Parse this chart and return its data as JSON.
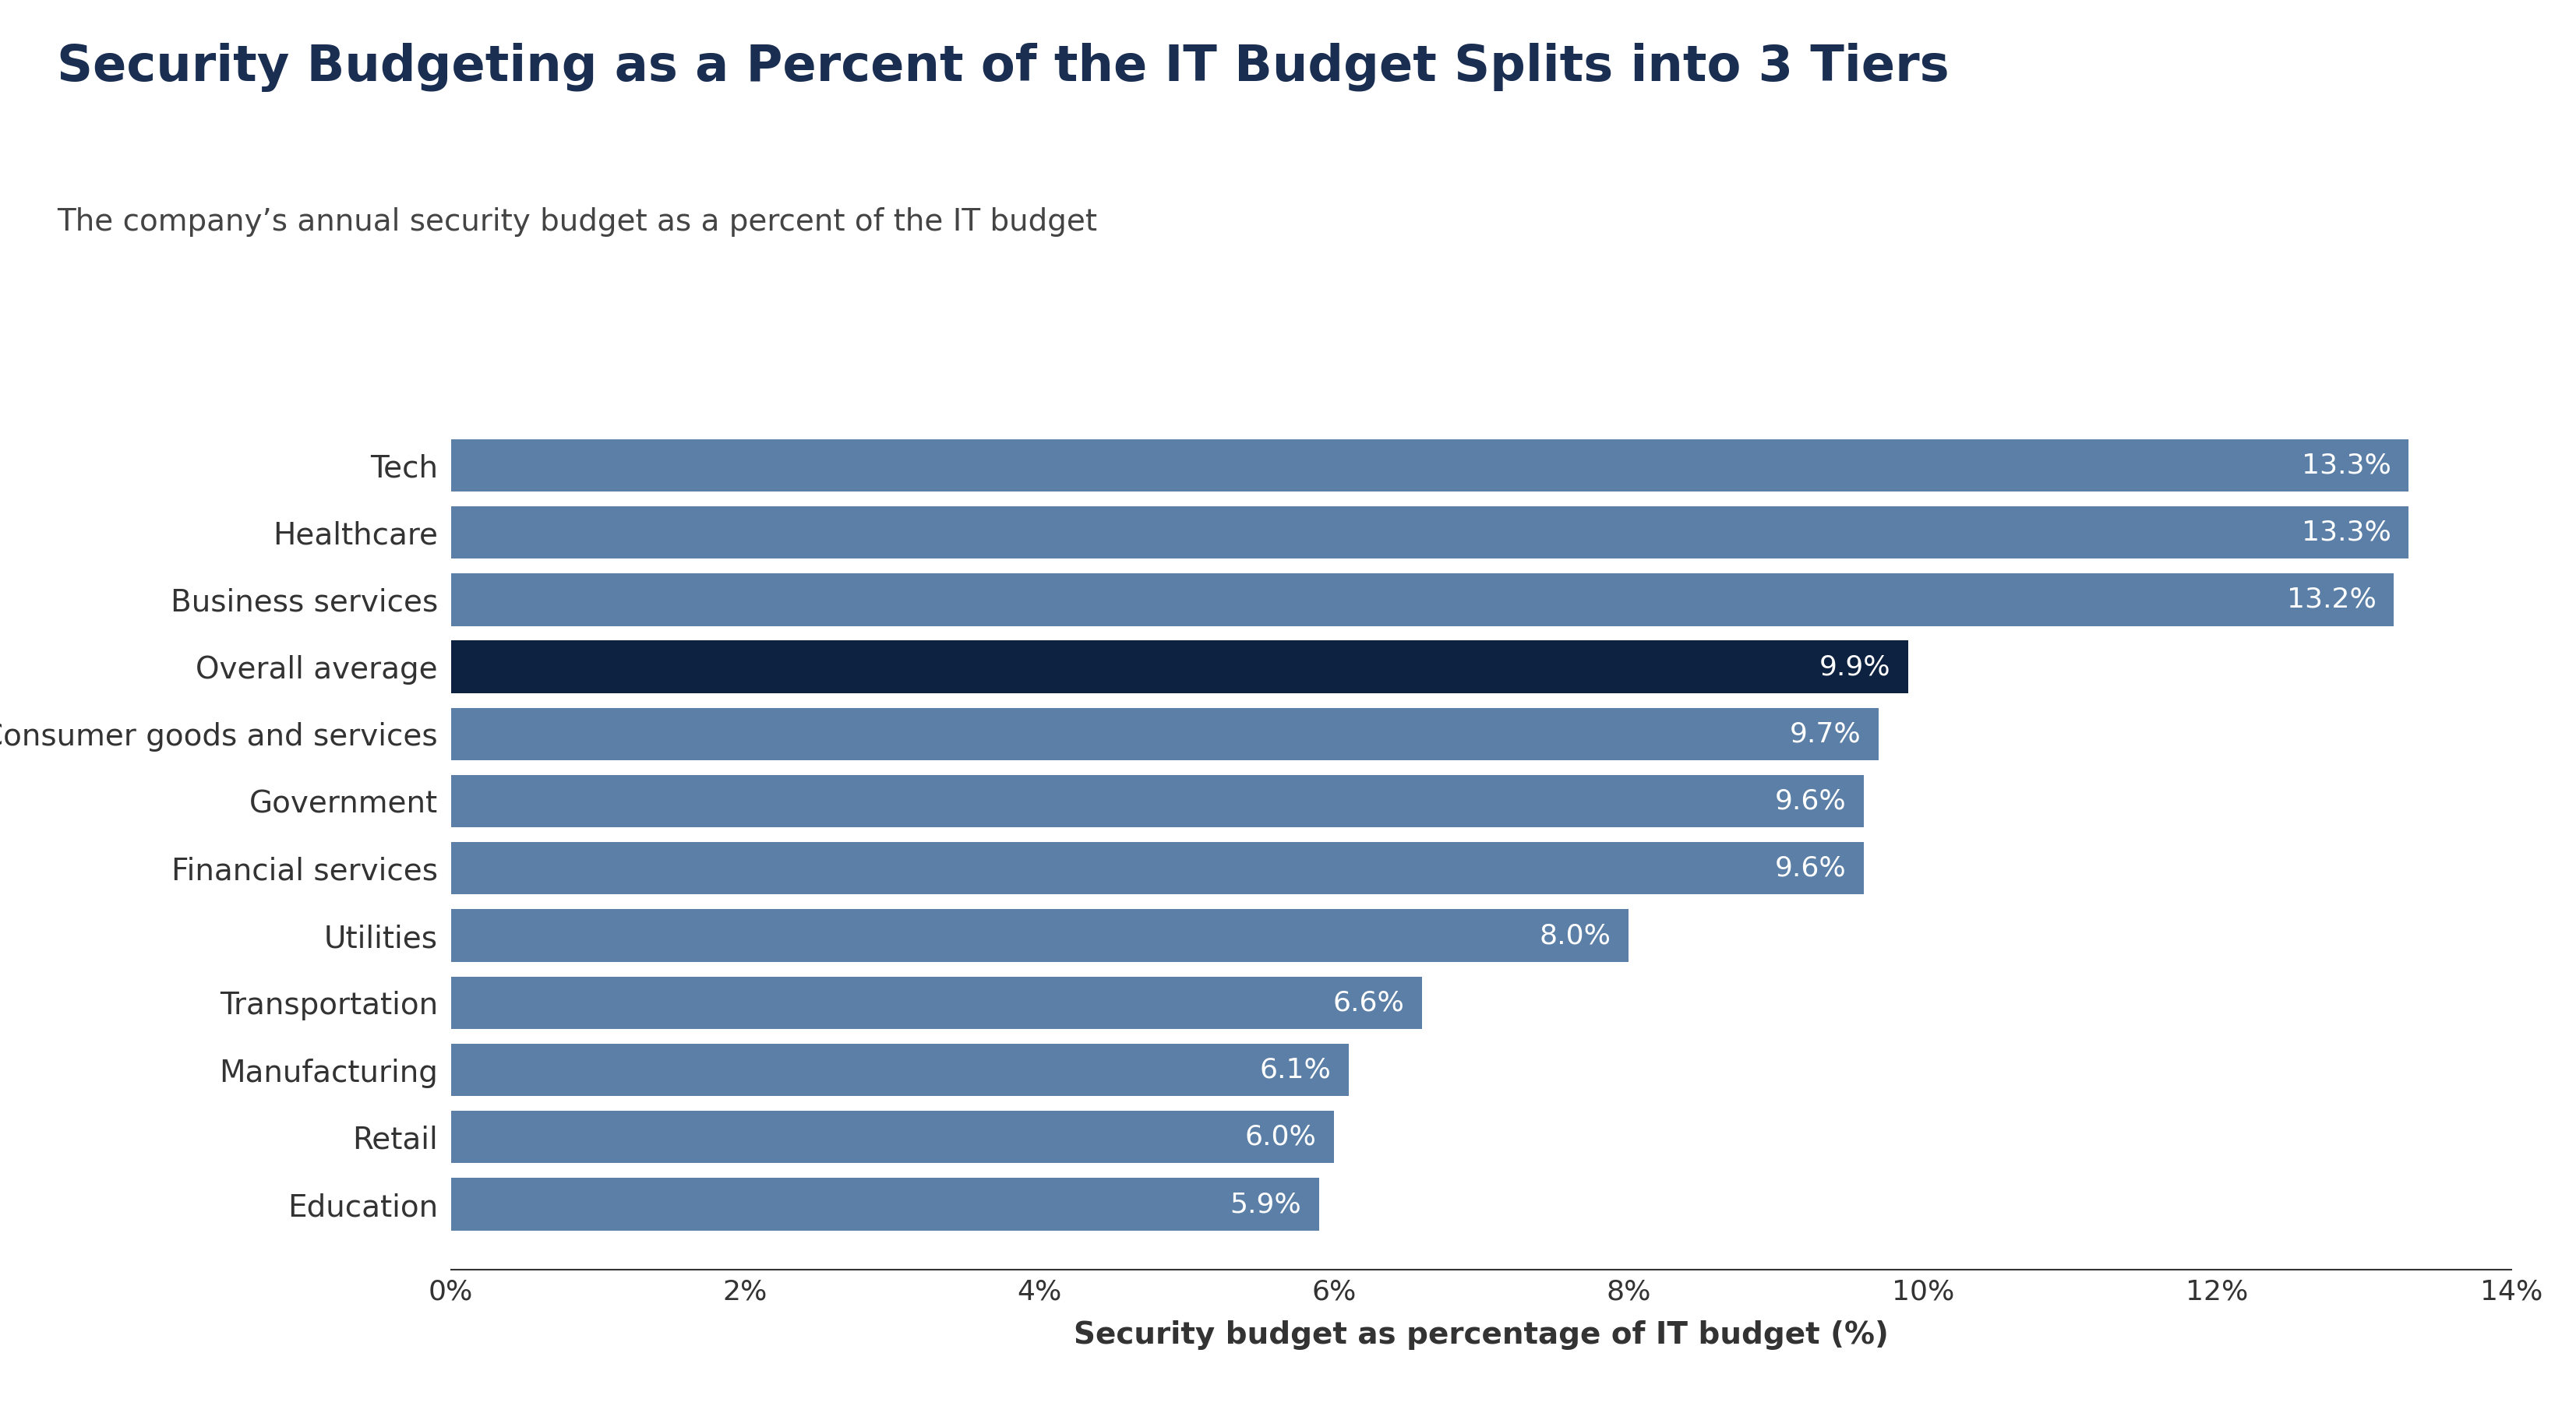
{
  "title": "Security Budgeting as a Percent of the IT Budget Splits into 3 Tiers",
  "subtitle": "The company’s annual security budget as a percent of the IT budget",
  "categories": [
    "Tech",
    "Healthcare",
    "Business services",
    "Overall average",
    "Consumer goods and services",
    "Government",
    "Financial services",
    "Utilities",
    "Transportation",
    "Manufacturing",
    "Retail",
    "Education"
  ],
  "values": [
    13.3,
    13.3,
    13.2,
    9.9,
    9.7,
    9.6,
    9.6,
    8.0,
    6.6,
    6.1,
    6.0,
    5.9
  ],
  "labels": [
    "13.3%",
    "13.3%",
    "13.2%",
    "9.9%",
    "9.7%",
    "9.6%",
    "9.6%",
    "8.0%",
    "6.6%",
    "6.1%",
    "6.0%",
    "5.9%"
  ],
  "bar_colors": [
    "#5b7fa6",
    "#5b7fa6",
    "#5b7fa6",
    "#0d2240",
    "#5b7fa6",
    "#5b7fa6",
    "#5b7fa6",
    "#5b7fa6",
    "#5b7fa6",
    "#5b7fa6",
    "#5b7fa6",
    "#5b7fa6"
  ],
  "xlabel": "Security budget as percentage of IT budget (%)",
  "xlim": [
    0,
    14
  ],
  "xtick_labels": [
    "0%",
    "2%",
    "4%",
    "6%",
    "8%",
    "10%",
    "12%",
    "14%"
  ],
  "xtick_values": [
    0,
    2,
    4,
    6,
    8,
    10,
    12,
    14
  ],
  "title_color": "#1a2e52",
  "subtitle_color": "#444444",
  "title_fontsize": 46,
  "subtitle_fontsize": 28,
  "label_fontsize": 26,
  "tick_fontsize": 26,
  "ytick_fontsize": 28,
  "xlabel_fontsize": 28,
  "background_color": "#ffffff"
}
